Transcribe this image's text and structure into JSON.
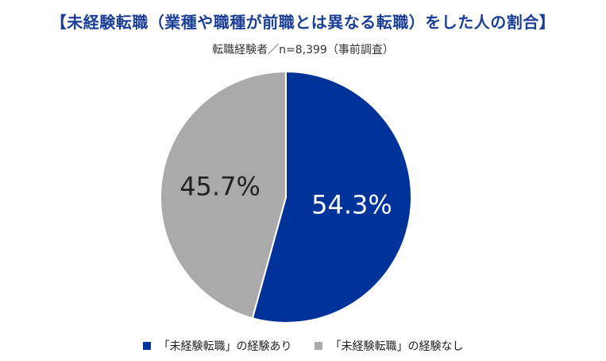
{
  "title": "【未経験転職（業種や職種が前職とは異なる転職）をした人の割合】",
  "subtitle": "転職経験者／n=8,399（事前調査）",
  "chart_data": {
    "type": "pie",
    "slices": [
      {
        "label": "「未経験転職」の経験あり",
        "value": 54.3,
        "display": "54.3%",
        "color": "#003399"
      },
      {
        "label": "「未経験転職」の経験なし",
        "value": 45.7,
        "display": "45.7%",
        "color": "#aaaaaa"
      }
    ],
    "start": "12 o'clock",
    "direction": "clockwise",
    "legend_position": "bottom"
  }
}
